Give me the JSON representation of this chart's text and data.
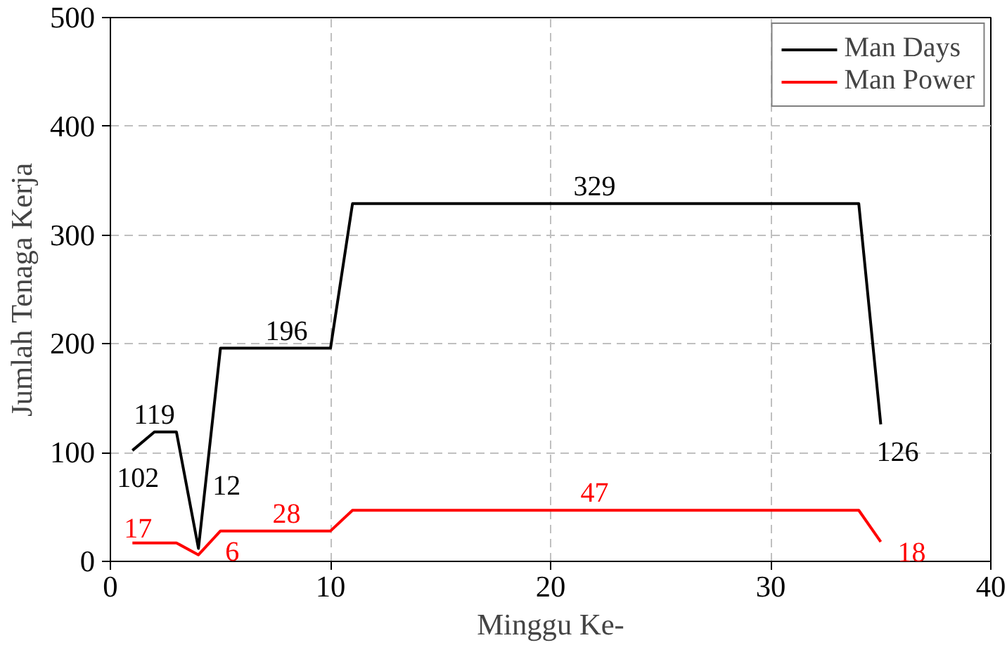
{
  "chart_data": {
    "type": "line",
    "xlabel": "Minggu Ke-",
    "ylabel": "Jumlah Tenaga Kerja",
    "x": [
      1,
      2,
      3,
      4,
      5,
      6,
      7,
      8,
      9,
      10,
      11,
      12,
      13,
      14,
      15,
      16,
      17,
      18,
      19,
      20,
      21,
      22,
      23,
      24,
      25,
      26,
      27,
      28,
      29,
      30,
      31,
      32,
      33,
      34,
      35
    ],
    "series": [
      {
        "name": "Man Days",
        "color": "#000000",
        "values": [
          102,
          119,
          119,
          12,
          196,
          196,
          196,
          196,
          196,
          196,
          329,
          329,
          329,
          329,
          329,
          329,
          329,
          329,
          329,
          329,
          329,
          329,
          329,
          329,
          329,
          329,
          329,
          329,
          329,
          329,
          329,
          329,
          329,
          329,
          126
        ],
        "value_labels": [
          "102",
          "119",
          null,
          "12",
          null,
          null,
          null,
          "196",
          null,
          null,
          null,
          null,
          null,
          null,
          null,
          null,
          null,
          null,
          null,
          null,
          null,
          "329",
          null,
          null,
          null,
          null,
          null,
          null,
          null,
          null,
          null,
          null,
          null,
          null,
          "126"
        ]
      },
      {
        "name": "Man Power",
        "color": "#ff0000",
        "values": [
          17,
          17,
          17,
          6,
          28,
          28,
          28,
          28,
          28,
          28,
          47,
          47,
          47,
          47,
          47,
          47,
          47,
          47,
          47,
          47,
          47,
          47,
          47,
          47,
          47,
          47,
          47,
          47,
          47,
          47,
          47,
          47,
          47,
          47,
          18
        ],
        "value_labels": [
          "17",
          null,
          null,
          "6",
          null,
          null,
          null,
          "28",
          null,
          null,
          null,
          null,
          null,
          null,
          null,
          null,
          null,
          null,
          null,
          null,
          null,
          "47",
          null,
          null,
          null,
          null,
          null,
          null,
          null,
          null,
          null,
          null,
          null,
          null,
          "18"
        ]
      }
    ],
    "xlim": [
      0,
      40
    ],
    "xticks": [
      0,
      10,
      20,
      30,
      40
    ],
    "ylim": [
      0,
      500
    ],
    "yticks": [
      0,
      100,
      200,
      300,
      400,
      500
    ],
    "grid": true,
    "legend": "top right",
    "marker": "none",
    "line_style": "solid"
  }
}
